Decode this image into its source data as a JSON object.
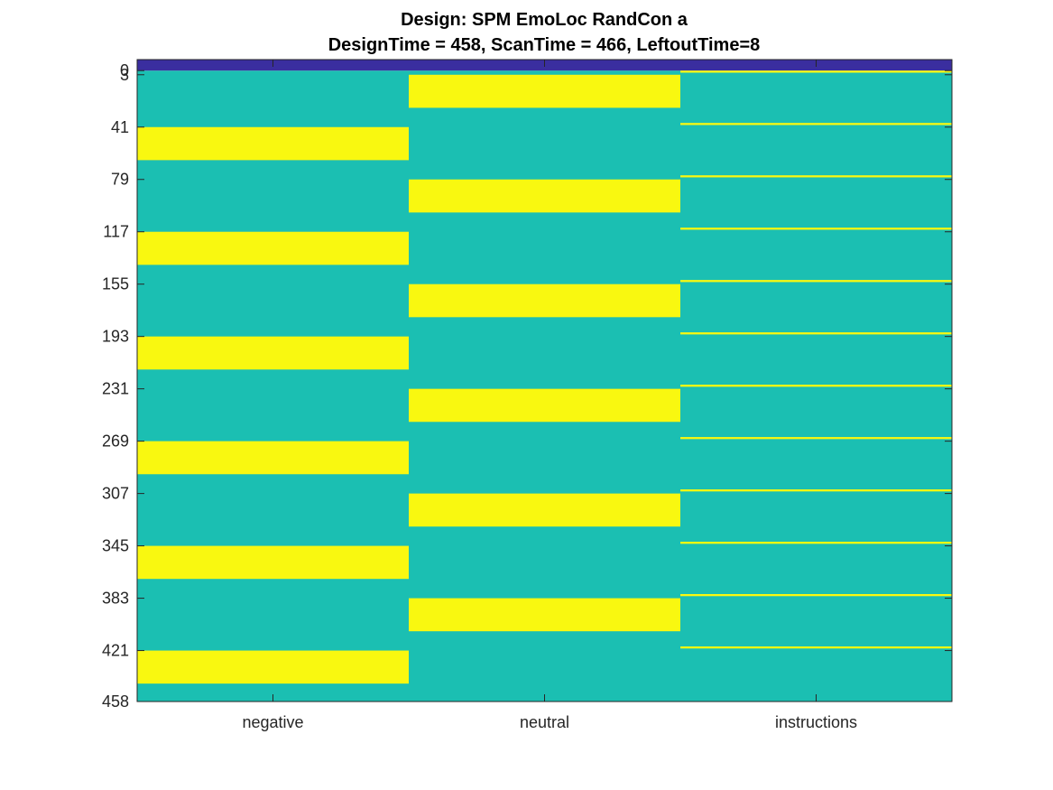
{
  "chart_data": {
    "type": "heatmap",
    "title_lines": [
      "Design: SPM EmoLoc RandCon a",
      "DesignTime = 458, ScanTime = 466, LeftoutTime=8"
    ],
    "columns": [
      "negative",
      "neutral",
      "instructions"
    ],
    "y_ticks": [
      0,
      3,
      41,
      79,
      117,
      155,
      193,
      231,
      269,
      307,
      345,
      383,
      421,
      458
    ],
    "ylim": [
      -8,
      458
    ],
    "y_direction": "reverse",
    "colormap": "parula",
    "colors": {
      "leftout": "#3a2e9f",
      "off": "#1bbfb2",
      "on": "#f9f810",
      "axis": "#262626"
    },
    "leftout_band": [
      -8,
      0
    ],
    "on_blocks": {
      "negative": [
        [
          41,
          65
        ],
        [
          117,
          141
        ],
        [
          193,
          217
        ],
        [
          269,
          293
        ],
        [
          345,
          369
        ],
        [
          421,
          445
        ]
      ],
      "neutral": [
        [
          3,
          27
        ],
        [
          79,
          103
        ],
        [
          155,
          179
        ],
        [
          231,
          255
        ],
        [
          307,
          331
        ],
        [
          383,
          407
        ]
      ],
      "instructions": [
        [
          0,
          1.5
        ],
        [
          38,
          39.5
        ],
        [
          76,
          77.5
        ],
        [
          114,
          115.5
        ],
        [
          152,
          153.5
        ],
        [
          190,
          191.5
        ],
        [
          228,
          229.5
        ],
        [
          266,
          267.5
        ],
        [
          304,
          305.5
        ],
        [
          342,
          343.5
        ],
        [
          380,
          381.5
        ],
        [
          418,
          419.5
        ]
      ]
    },
    "grid": false,
    "legend": "none"
  }
}
